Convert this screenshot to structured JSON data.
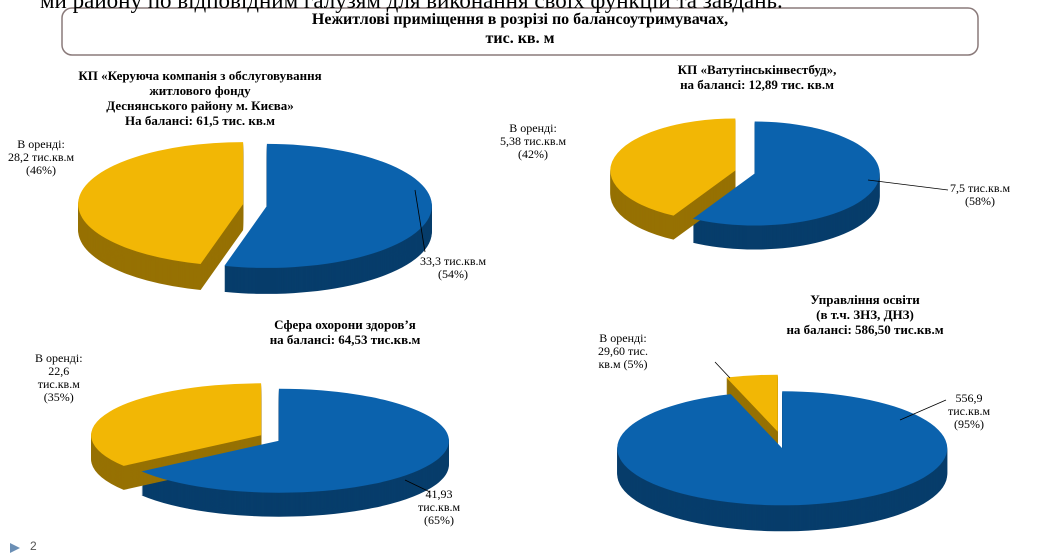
{
  "header_fragment": "ми району по відповідним галузям для виконання своїх функцій та завдань.",
  "heading": "Нежитлові приміщення в розрізі по балансоутримувачах,\nтис. кв. м",
  "page_number": "2",
  "chart_data": [
    {
      "type": "pie",
      "title": "КП «Керуюча компанія з обслуговування\nжитлового фонду\nДеснянського району м. Києва»\nНа балансі: 61,5 тис. кв.м",
      "categories": [
        "В оренді:",
        null
      ],
      "values": [
        28.2,
        33.3
      ],
      "value_labels": [
        "28,2 тис.кв.м\n(46%)",
        "33,3 тис.кв.м\n(54%)"
      ],
      "colors": [
        "#f2b705",
        "#0b62ad"
      ]
    },
    {
      "type": "pie",
      "title": "КП «Ватутінськінвестбуд»,\nна балансі: 12,89 тис. кв.м",
      "categories": [
        "В оренді:",
        null
      ],
      "values": [
        5.38,
        7.5
      ],
      "value_labels": [
        "5,38 тис.кв.м\n(42%)",
        "7,5 тис.кв.м\n(58%)"
      ],
      "colors": [
        "#f2b705",
        "#0b62ad"
      ]
    },
    {
      "type": "pie",
      "title": "Сфера охорони здоров’я\nна балансі: 64,53 тис.кв.м",
      "categories": [
        "В оренді:",
        null
      ],
      "values": [
        22.6,
        41.93
      ],
      "value_labels": [
        "22,6\nтис.кв.м\n(35%)",
        "41,93\nтис.кв.м\n(65%)"
      ],
      "colors": [
        "#f2b705",
        "#0b62ad"
      ]
    },
    {
      "type": "pie",
      "title": "Управління освіти\n(в т.ч. ЗНЗ, ДНЗ)\nна балансі: 586,50 тис.кв.м",
      "categories": [
        "В оренді:",
        null
      ],
      "values": [
        29.6,
        556.9
      ],
      "value_labels": [
        "29,60 тис.\nкв.м  (5%)",
        "556,9\nтис.кв.м\n(95%)"
      ],
      "colors": [
        "#f2b705",
        "#0b62ad"
      ]
    }
  ]
}
